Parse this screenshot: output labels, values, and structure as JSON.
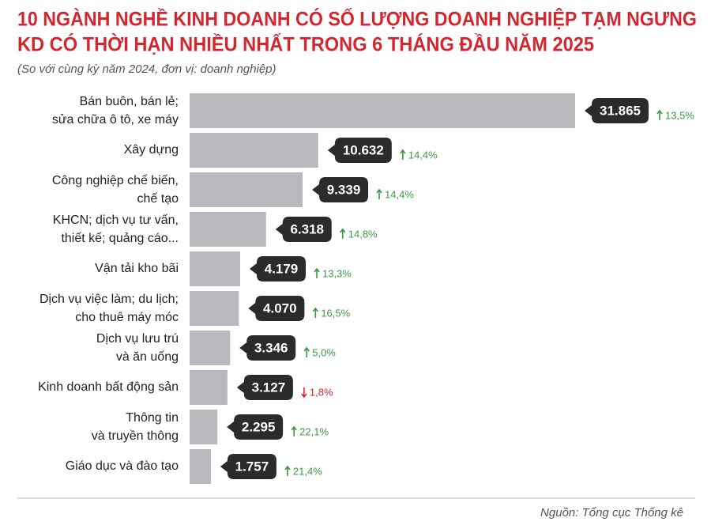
{
  "chart_data": {
    "type": "bar",
    "orientation": "horizontal",
    "title": [
      "10 NGÀNH NGHỀ KINH DOANH CÓ SỐ LƯỢNG DOANH NGHIỆP TẠM NGƯNG",
      "KD CÓ THỜI HẠN NHIỀU NHẤT TRONG 6 THÁNG ĐẦU NĂM 2025"
    ],
    "subtitle": "(So với cùng kỳ năm 2024, đơn vị: doanh nghiệp)",
    "categories": [
      [
        "Bán buôn, bán lẻ;",
        "sửa chữa ô tô, xe máy"
      ],
      [
        "Xây dựng"
      ],
      [
        "Công nghiệp chế biến,",
        "chế tạo"
      ],
      [
        "KHCN; dịch vụ tư vấn,",
        "thiết kế; quảng cáo..."
      ],
      [
        "Vận tải kho bãi"
      ],
      [
        "Dịch vụ việc làm; du lịch;",
        "cho thuê máy móc"
      ],
      [
        "Dịch vụ lưu trú",
        "và ăn uống"
      ],
      [
        "Kinh doanh bất động sản"
      ],
      [
        "Thông tin",
        "và truyền thông"
      ],
      [
        "Giáo dục và đào tạo"
      ]
    ],
    "values": [
      31865,
      10632,
      9339,
      6318,
      4179,
      4070,
      3346,
      3127,
      2295,
      1757
    ],
    "value_labels": [
      "31.865",
      "10.632",
      "9.339",
      "6.318",
      "4.179",
      "4.070",
      "3.346",
      "3.127",
      "2.295",
      "1.757"
    ],
    "change_labels": [
      "13,5%",
      "14,4%",
      "14,4%",
      "14,8%",
      "13,3%",
      "16,5%",
      "5,0%",
      "1,8%",
      "22,1%",
      "21,4%"
    ],
    "change_direction": [
      "up",
      "up",
      "up",
      "up",
      "up",
      "up",
      "up",
      "down",
      "up",
      "up"
    ],
    "color": "#b9b9bd",
    "source": "Nguồn: Tổng cục Thống kê"
  }
}
